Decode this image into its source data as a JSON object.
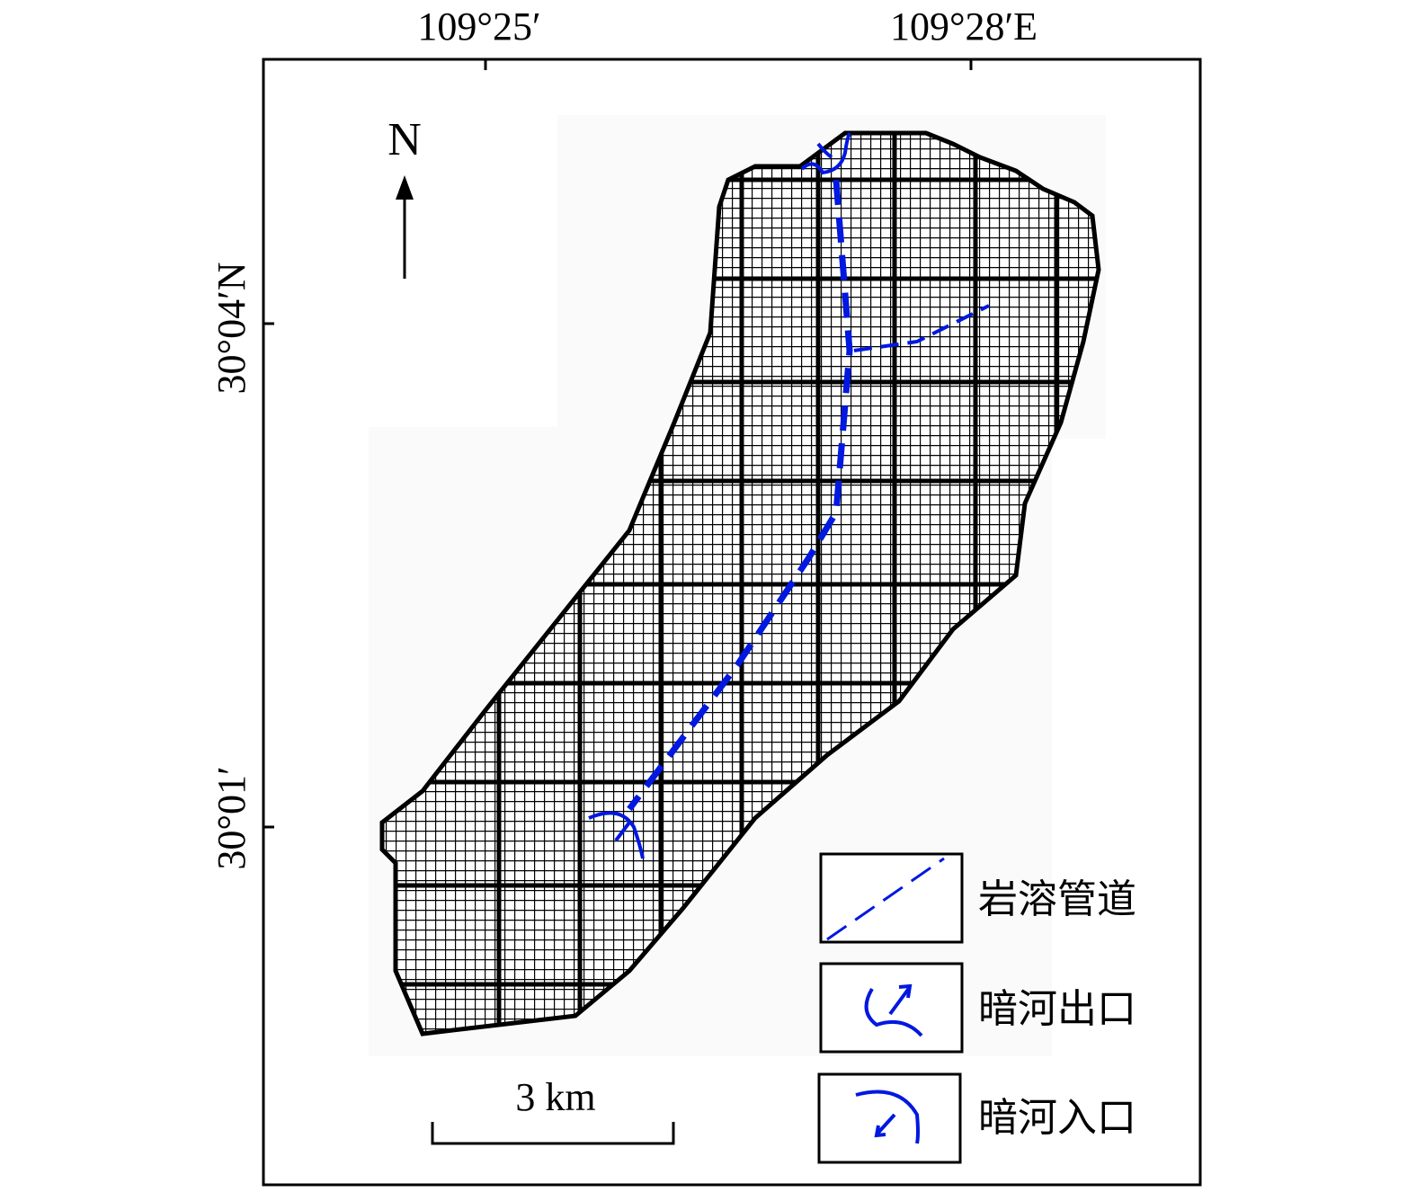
{
  "axes": {
    "top_labels": [
      "109°25′",
      "109°28′E"
    ],
    "left_labels": [
      "30°04′N",
      "30°01′"
    ]
  },
  "north_arrow": "N",
  "scale_bar": "3 km",
  "legend": [
    "岩溶管道",
    "暗河出口",
    "暗河入口"
  ]
}
